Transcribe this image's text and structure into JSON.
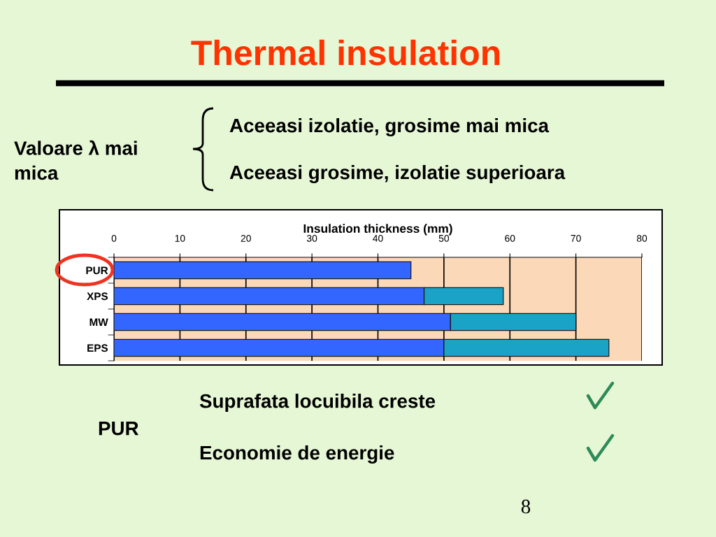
{
  "chart_data": {
    "type": "bar",
    "orientation": "horizontal",
    "stacked": true,
    "title": "Thermal insulation",
    "xlabel": "Insulation thickness (mm)",
    "categories": [
      "PUR",
      "XPS",
      "MW",
      "EPS"
    ],
    "series": [
      {
        "color": "#3366ff",
        "values": [
          45,
          47,
          51,
          50
        ]
      },
      {
        "color": "#1aa3c6",
        "values": [
          null,
          12,
          19,
          25
        ]
      }
    ],
    "xlim": [
      0,
      80
    ],
    "xticks": [
      0,
      10,
      20,
      30,
      40,
      50,
      60,
      70,
      80
    ],
    "grid": "x",
    "annotations": [
      "Valoare λ mai\nmica",
      "Aceeasi izolatie, grosime mai mica",
      "Aceeasi grosime, izolatie superioara",
      "Suprafata locuibila creste",
      "PUR",
      "Economie de energie",
      "8"
    ]
  }
}
